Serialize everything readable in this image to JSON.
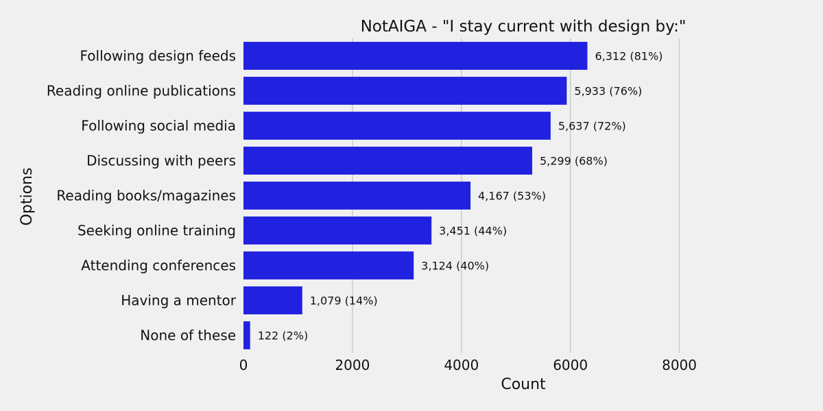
{
  "chart_data": {
    "type": "bar",
    "orientation": "horizontal",
    "title": "NotAIGA - \"I stay current with design by:\"",
    "xlabel": "Count",
    "ylabel": "Options",
    "xlim": [
      0,
      9000
    ],
    "xticks": [
      0,
      2000,
      4000,
      6000,
      8000
    ],
    "xtick_labels": [
      "0",
      "2000",
      "4000",
      "6000",
      "8000"
    ],
    "grid": "vertical",
    "bar_color": "#2121e0",
    "background": "#f0f0f0",
    "categories": [
      "Following design feeds",
      "Reading online publications",
      "Following social media",
      "Discussing with peers",
      "Reading books/magazines",
      "Seeking online training",
      "Attending conferences",
      "Having a mentor",
      "None of these"
    ],
    "values": [
      6312,
      5933,
      5637,
      5299,
      4167,
      3451,
      3124,
      1079,
      122
    ],
    "data_labels": [
      "6,312 (81%)",
      "5,933 (76%)",
      "5,637 (72%)",
      "5,299 (68%)",
      "4,167 (53%)",
      "3,451 (44%)",
      "3,124 (40%)",
      "1,079 (14%)",
      "122 (2%)"
    ]
  }
}
